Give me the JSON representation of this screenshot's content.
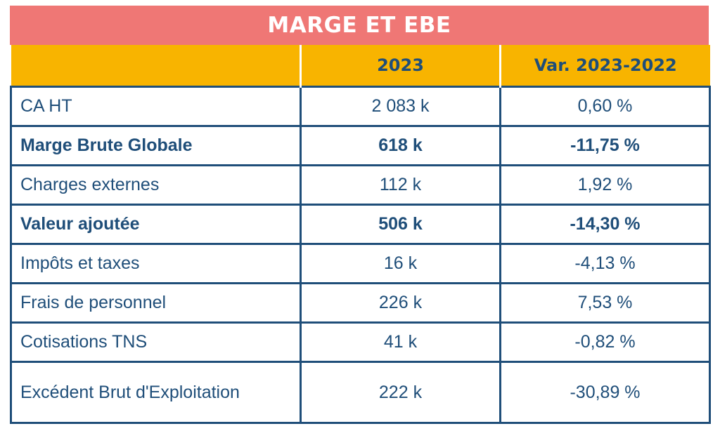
{
  "title": "MARGE ET EBE",
  "headers": [
    "",
    "2023",
    "Var. 2023-2022"
  ],
  "rows": [
    {
      "label": "CA HT",
      "value": "2 083 k",
      "variation": "0,60 %",
      "bold": false
    },
    {
      "label": "Marge Brute Globale",
      "value": "618 k",
      "variation": "-11,75 %",
      "bold": true
    },
    {
      "label": "Charges externes",
      "value": "112 k",
      "variation": "1,92 %",
      "bold": false
    },
    {
      "label": "Valeur ajoutée",
      "value": "506 k",
      "variation": "-14,30 %",
      "bold": true
    },
    {
      "label": "Impôts et taxes",
      "value": "16 k",
      "variation": "-4,13 %",
      "bold": false
    },
    {
      "label": "Frais de personnel",
      "value": "226 k",
      "variation": "7,53 %",
      "bold": false
    },
    {
      "label": "Cotisations TNS",
      "value": "41 k",
      "variation": "-0,82 %",
      "bold": false
    },
    {
      "label": "Excédent Brut d'Exploitation",
      "value": "222 k",
      "variation": "-30,89 %",
      "bold": false
    }
  ],
  "colors": {
    "title_bg": "#ef7775",
    "header_bg": "#f8b400",
    "text": "#1f4e79",
    "border": "#1f4e79"
  }
}
